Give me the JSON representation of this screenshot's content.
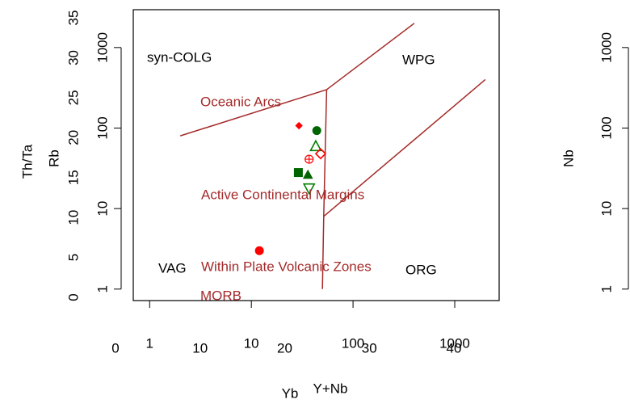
{
  "chart_data": [
    {
      "type": "scatter",
      "x_label": "Y+Nb",
      "y_label": "Rb",
      "log_x": true,
      "log_y": true,
      "xlim": [
        0.69,
        2735
      ],
      "ylim": [
        0.72,
        2951
      ],
      "xticks": [
        1,
        10,
        100,
        1000
      ],
      "yticks": [
        1,
        10,
        100,
        1000
      ],
      "x": [
        29.4,
        44,
        43,
        48,
        37,
        29,
        36,
        37,
        12
      ],
      "y": [
        107,
        93,
        59,
        48,
        41,
        28,
        26,
        18,
        3
      ],
      "shapes": [
        "diamond",
        "circle",
        "triangle-open",
        "diamond-open",
        "circle-cross",
        "square",
        "triangle",
        "triangle-down-open",
        "circle"
      ],
      "colors": [
        "#ff0000",
        "#006400",
        "#008000",
        "#ff0000",
        "#ff0000",
        "#006400",
        "#006400",
        "#008000",
        "#ff0000"
      ],
      "line_color": "#a52a2a",
      "field_lines": [
        {
          "x": [
            2,
            55
          ],
          "y": [
            80,
            300
          ]
        },
        {
          "x": [
            55,
            400
          ],
          "y": [
            300,
            2000
          ]
        },
        {
          "x": [
            55,
            51.5,
            50
          ],
          "y": [
            300,
            8,
            1
          ]
        },
        {
          "x": [
            51.5,
            2000
          ],
          "y": [
            8,
            400
          ]
        }
      ],
      "field_labels": [
        "syn-COLG",
        "WPG",
        "VAG",
        "ORG"
      ]
    },
    {
      "type": "axes",
      "x_label": "Yb",
      "y_label": "Th/Ta",
      "xlim": [
        0,
        40
      ],
      "ylim": [
        0,
        35
      ],
      "xticks": [
        0,
        10,
        20,
        30,
        40
      ],
      "yticks": [
        0,
        5,
        10,
        15,
        20,
        25,
        30,
        35
      ],
      "label_color": "#a52a2a",
      "field_labels": [
        "Oceanic Arcs",
        "Active Continental Margins",
        "Within Plate Volcanic Zones",
        "MORB"
      ]
    },
    {
      "type": "axes",
      "y_label": "Nb",
      "log_y": true,
      "ylim": [
        0.72,
        2951
      ],
      "yticks": [
        1,
        10,
        100,
        1000
      ]
    }
  ]
}
